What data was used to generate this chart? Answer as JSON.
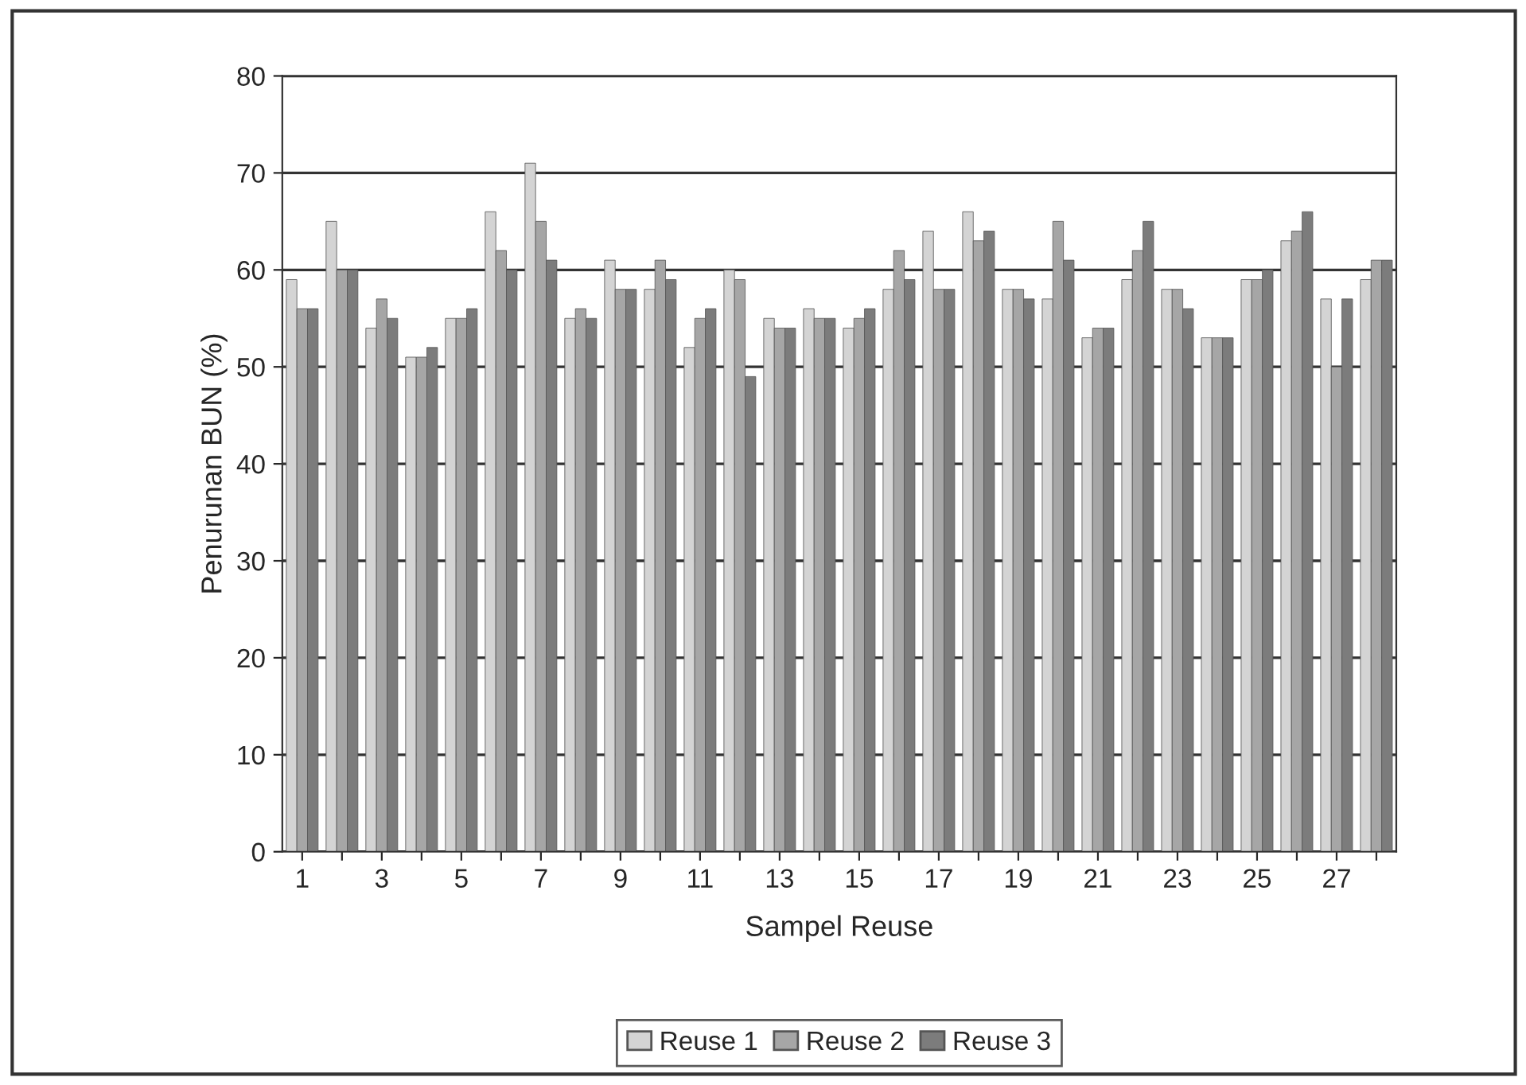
{
  "chart_data": {
    "type": "bar",
    "xlabel": "Sampel Reuse",
    "ylabel": "Penurunan BUN (%)",
    "categories": [
      "1",
      null,
      "3",
      null,
      "5",
      null,
      "7",
      null,
      "9",
      null,
      "11",
      null,
      "13",
      null,
      "15",
      null,
      "17",
      null,
      "19",
      null,
      "21",
      null,
      "23",
      null,
      "25",
      null,
      "27",
      null
    ],
    "series": [
      {
        "name": "Reuse 1",
        "color": "#d4d4d4",
        "values": [
          59,
          65,
          54,
          51,
          55,
          66,
          71,
          55,
          61,
          58,
          52,
          60,
          55,
          56,
          54,
          58,
          64,
          66,
          58,
          57,
          53,
          59,
          58,
          53,
          59,
          63,
          57,
          59
        ]
      },
      {
        "name": "Reuse 2",
        "color": "#a6a6a6",
        "values": [
          56,
          60,
          57,
          51,
          55,
          62,
          65,
          56,
          58,
          61,
          55,
          59,
          54,
          55,
          55,
          62,
          58,
          63,
          58,
          65,
          54,
          62,
          58,
          53,
          59,
          64,
          50,
          61
        ]
      },
      {
        "name": "Reuse 3",
        "color": "#7c7c7c",
        "values": [
          56,
          60,
          55,
          52,
          56,
          60,
          61,
          55,
          58,
          59,
          56,
          49,
          54,
          55,
          56,
          59,
          58,
          64,
          57,
          61,
          54,
          65,
          56,
          53,
          60,
          66,
          57,
          61
        ]
      }
    ],
    "ylim": [
      0,
      80
    ],
    "yticks": [
      0,
      10,
      20,
      30,
      40,
      50,
      60,
      70,
      80
    ],
    "grid": "y",
    "legend": "bottom"
  }
}
